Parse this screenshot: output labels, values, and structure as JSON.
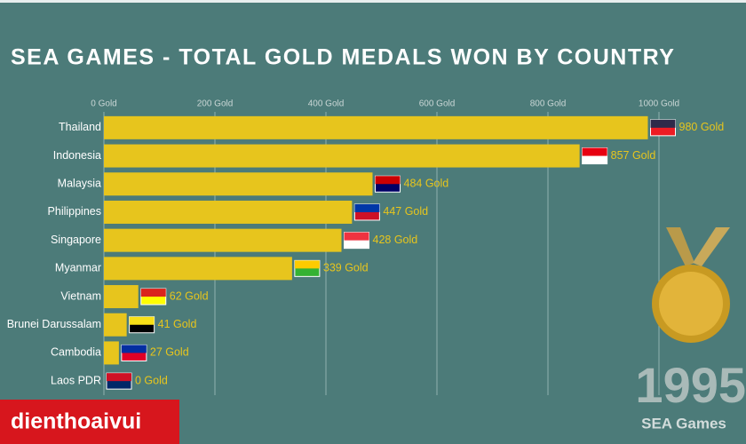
{
  "chart_data": {
    "type": "bar",
    "orientation": "horizontal",
    "title": "SEA GAMES - TOTAL GOLD MEDALS WON BY COUNTRY",
    "categories": [
      "Thailand",
      "Indonesia",
      "Malaysia",
      "Philippines",
      "Singapore",
      "Myanmar",
      "Vietnam",
      "Brunei Darussalam",
      "Cambodia",
      "Laos PDR"
    ],
    "values": [
      980,
      857,
      484,
      447,
      428,
      339,
      62,
      41,
      27,
      0
    ],
    "value_labels": [
      "980 Gold",
      "857 Gold",
      "484 Gold",
      "447 Gold",
      "428 Gold",
      "339 Gold",
      "62 Gold",
      "41 Gold",
      "27 Gold",
      "0 Gold"
    ],
    "color": "#e7c51d",
    "xlim": [
      0,
      1000
    ],
    "xticks": [
      {
        "value": 0,
        "label": "0 Gold"
      },
      {
        "value": 200,
        "label": "200 Gold"
      },
      {
        "value": 400,
        "label": "400 Gold"
      },
      {
        "value": 600,
        "label": "600 Gold"
      },
      {
        "value": 800,
        "label": "800 Gold"
      },
      {
        "value": 1000,
        "label": "1000 Gold"
      }
    ],
    "grid": true,
    "year": "1995",
    "event": "SEA Games"
  },
  "brand": "dienthoaivui"
}
